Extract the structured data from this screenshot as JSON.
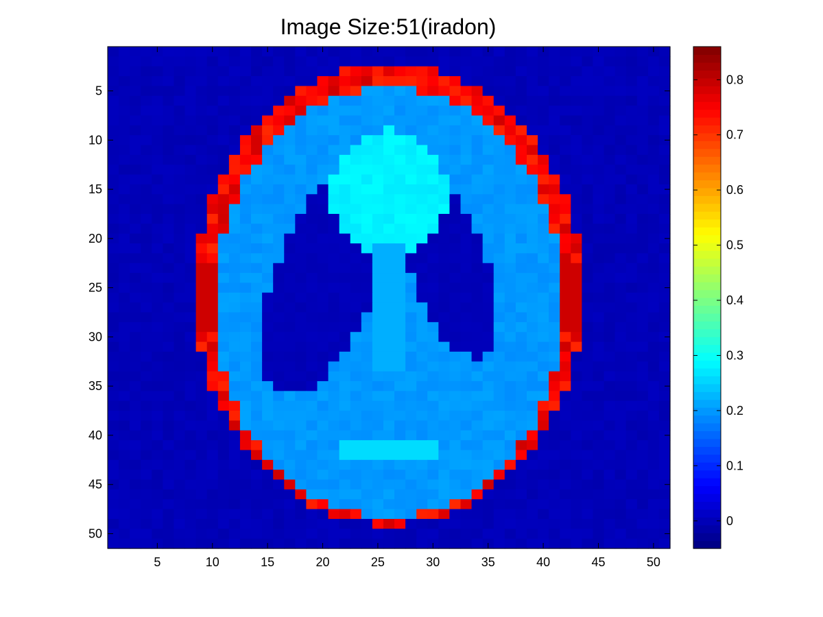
{
  "chart_data": {
    "type": "heatmap",
    "title": "Image Size:51(iradon)",
    "xlabel": "",
    "ylabel": "",
    "grid": "off",
    "size": 51,
    "xlim": [
      0.5,
      51.5
    ],
    "ylim": [
      0.5,
      51.5
    ],
    "y_direction": "top-to-bottom",
    "x_ticks": [
      5,
      10,
      15,
      20,
      25,
      30,
      35,
      40,
      45,
      50
    ],
    "y_ticks": [
      5,
      10,
      15,
      20,
      25,
      30,
      35,
      40,
      45,
      50
    ],
    "colormap": "jet",
    "clim": [
      -0.05,
      0.86
    ],
    "colorbar": {
      "placement": "right",
      "ticks": [
        0,
        0.1,
        0.2,
        0.3,
        0.4,
        0.5,
        0.6,
        0.7,
        0.8
      ],
      "tick_labels": [
        "0",
        "0.1",
        "0.2",
        "0.3",
        "0.4",
        "0.5",
        "0.6",
        "0.7",
        "0.8"
      ]
    },
    "regions": {
      "background": 0.0,
      "skull_rim": 0.75,
      "brain_tissue": 0.2,
      "dark_lobes": 0.0,
      "upper_bright_blob": 0.28,
      "stem": 0.22,
      "lower_bright_band": 0.26
    }
  }
}
